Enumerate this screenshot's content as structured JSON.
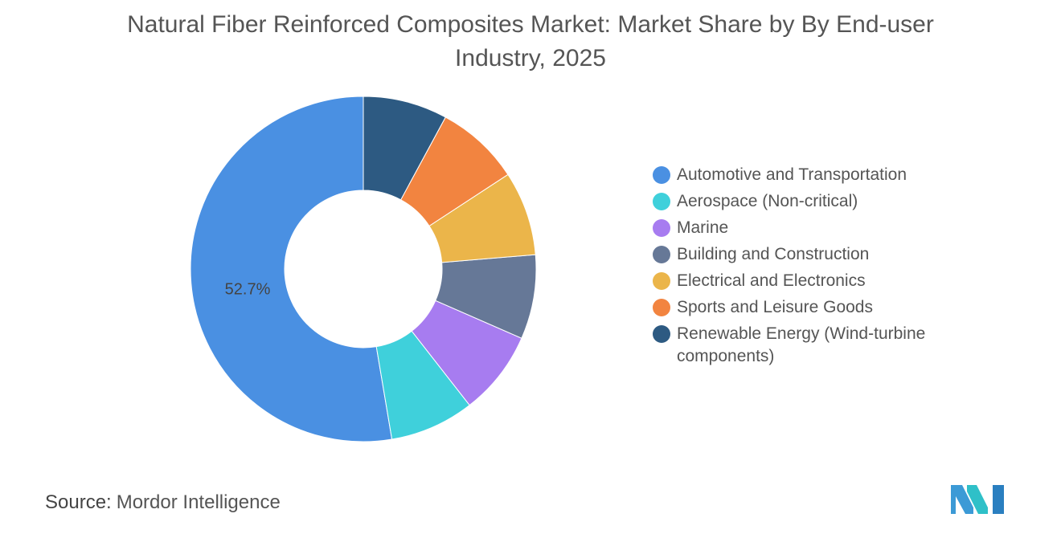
{
  "chart_data": {
    "type": "donut",
    "title": "Natural Fiber Reinforced Composites Market: Market Share by By End-user Industry, 2025",
    "categories": [
      "Automotive and Transportation",
      "Aerospace (Non-critical)",
      "Marine",
      "Building and Construction",
      "Electrical and Electronics",
      "Sports and Leisure Goods",
      "Renewable Energy (Wind-turbine components)"
    ],
    "values": [
      52.7,
      7.9,
      7.9,
      7.9,
      7.9,
      7.9,
      7.9
    ],
    "value_labels": [
      "52.7%",
      null,
      null,
      null,
      null,
      null,
      null
    ],
    "colors": [
      "#4a90e2",
      "#3fd0db",
      "#a77cf0",
      "#667897",
      "#ebb54a",
      "#f28440",
      "#2d5a82"
    ],
    "legend": "right",
    "source_label": "Source:",
    "source": "Mordor Intelligence"
  }
}
